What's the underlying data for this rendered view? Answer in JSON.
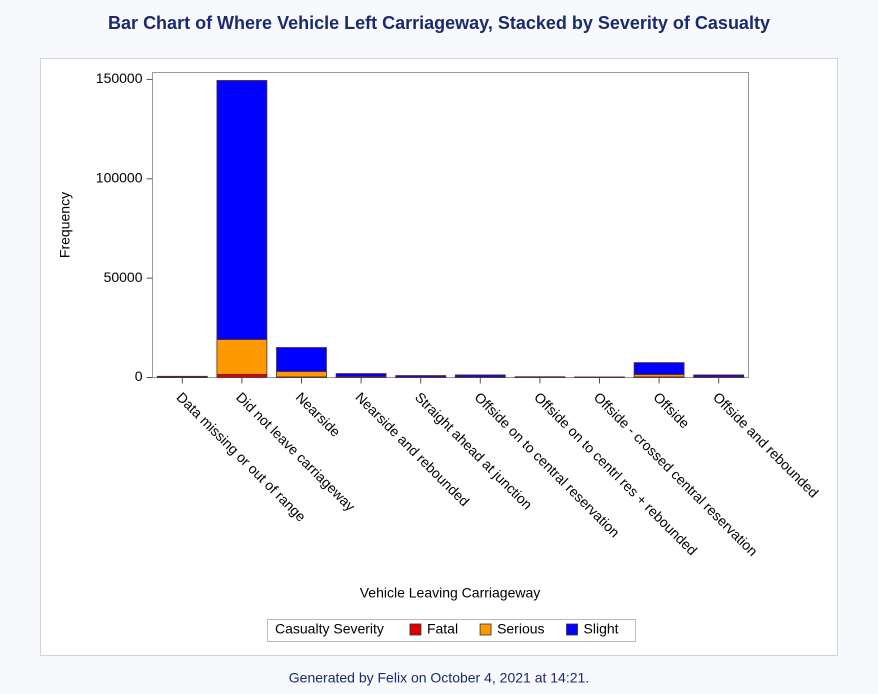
{
  "chart_data": {
    "type": "stacked_bar",
    "title": "Bar Chart of Where Vehicle Left Carriageway, Stacked by Severity of Casualty",
    "x_label": "Vehicle Leaving Carriageway",
    "y_label": "Frequency",
    "legend_title": "Casualty Severity",
    "footnote": "Generated by Felix on October 4, 2021 at 14:21.",
    "categories": [
      "Data missing or out of range",
      "Did not leave carriageway",
      "Nearside",
      "Nearside and rebounded",
      "Straight ahead at junction",
      "Offside on to central reservation",
      "Offside on to centrl res + rebounded",
      "Offside - crossed central reservation",
      "Offside",
      "Offside and rebounded"
    ],
    "series": [
      {
        "name": "Fatal",
        "color": "#e00000",
        "values": [
          10,
          1600,
          300,
          50,
          20,
          20,
          10,
          15,
          300,
          30
        ]
      },
      {
        "name": "Serious",
        "color": "#ff9900",
        "values": [
          100,
          17500,
          2700,
          350,
          180,
          200,
          70,
          60,
          1200,
          220
        ]
      },
      {
        "name": "Slight",
        "color": "#0000ff",
        "values": [
          500,
          130400,
          12100,
          1600,
          800,
          1100,
          320,
          200,
          6000,
          1050
        ]
      }
    ],
    "ylim": [
      0,
      153500
    ],
    "yticks": [
      0,
      50000,
      100000,
      150000
    ]
  }
}
